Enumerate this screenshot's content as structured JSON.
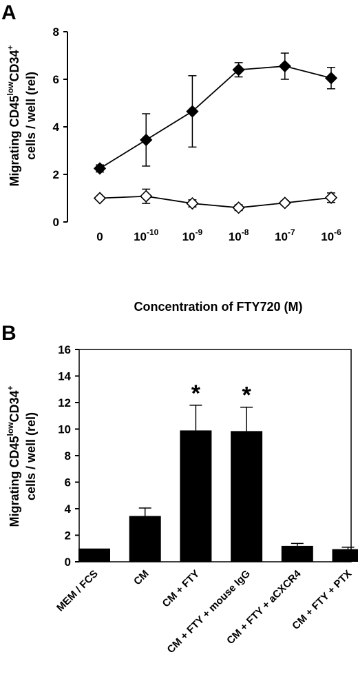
{
  "panel_a": {
    "letter": "A",
    "ylabel_line1": "Migrating CD45",
    "ylabel_sup1": "low",
    "ylabel_mid": "CD34",
    "ylabel_sup2": "+",
    "ylabel_line2": "cells / well (rel)",
    "xlabel": "Concentration of FTY720 (M)"
  },
  "panel_b": {
    "letter": "B",
    "ylabel_line1": "Migrating CD45",
    "ylabel_sup1": "low",
    "ylabel_mid": "CD34",
    "ylabel_sup2": "+",
    "ylabel_line2": "cells / well (rel)"
  },
  "chart_data": [
    {
      "panel": "A",
      "type": "line",
      "x_labels": [
        {
          "base": "0",
          "exp": ""
        },
        {
          "base": "10",
          "exp": "-10"
        },
        {
          "base": "10",
          "exp": "-9"
        },
        {
          "base": "10",
          "exp": "-8"
        },
        {
          "base": "10",
          "exp": "-7"
        },
        {
          "base": "10",
          "exp": "-6"
        }
      ],
      "xlabel": "Concentration of FTY720 (M)",
      "ylabel": "Migrating CD45lowCD34+ cells / well (rel)",
      "ylim": [
        0,
        8
      ],
      "yticks": [
        0,
        2,
        4,
        6,
        8
      ],
      "series": [
        {
          "marker": "filled-diamond",
          "values": [
            2.25,
            3.45,
            4.65,
            6.4,
            6.55,
            6.05
          ],
          "errors": [
            0.15,
            1.1,
            1.5,
            0.3,
            0.55,
            0.45
          ]
        },
        {
          "marker": "open-diamond",
          "values": [
            1.0,
            1.08,
            0.78,
            0.6,
            0.8,
            1.02
          ],
          "errors": [
            0.05,
            0.3,
            0.15,
            0.12,
            0.1,
            0.2
          ]
        }
      ]
    },
    {
      "panel": "B",
      "type": "bar",
      "categories": [
        "MEM / FCS",
        "CM",
        "CM + FTY",
        "CM + FTY + mouse IgG",
        "CM + FTY + aCXCR4",
        "CM + FTY + PTX"
      ],
      "values": [
        1.0,
        3.45,
        9.9,
        9.85,
        1.2,
        0.95
      ],
      "errors": [
        0.0,
        0.6,
        1.9,
        1.8,
        0.18,
        0.15
      ],
      "significance": [
        "",
        "",
        "*",
        "*",
        "",
        ""
      ],
      "ylabel": "Migrating CD45lowCD34+ cells / well (rel)",
      "ylim": [
        0,
        16
      ],
      "yticks": [
        0,
        2,
        4,
        6,
        8,
        10,
        12,
        14,
        16
      ]
    }
  ]
}
